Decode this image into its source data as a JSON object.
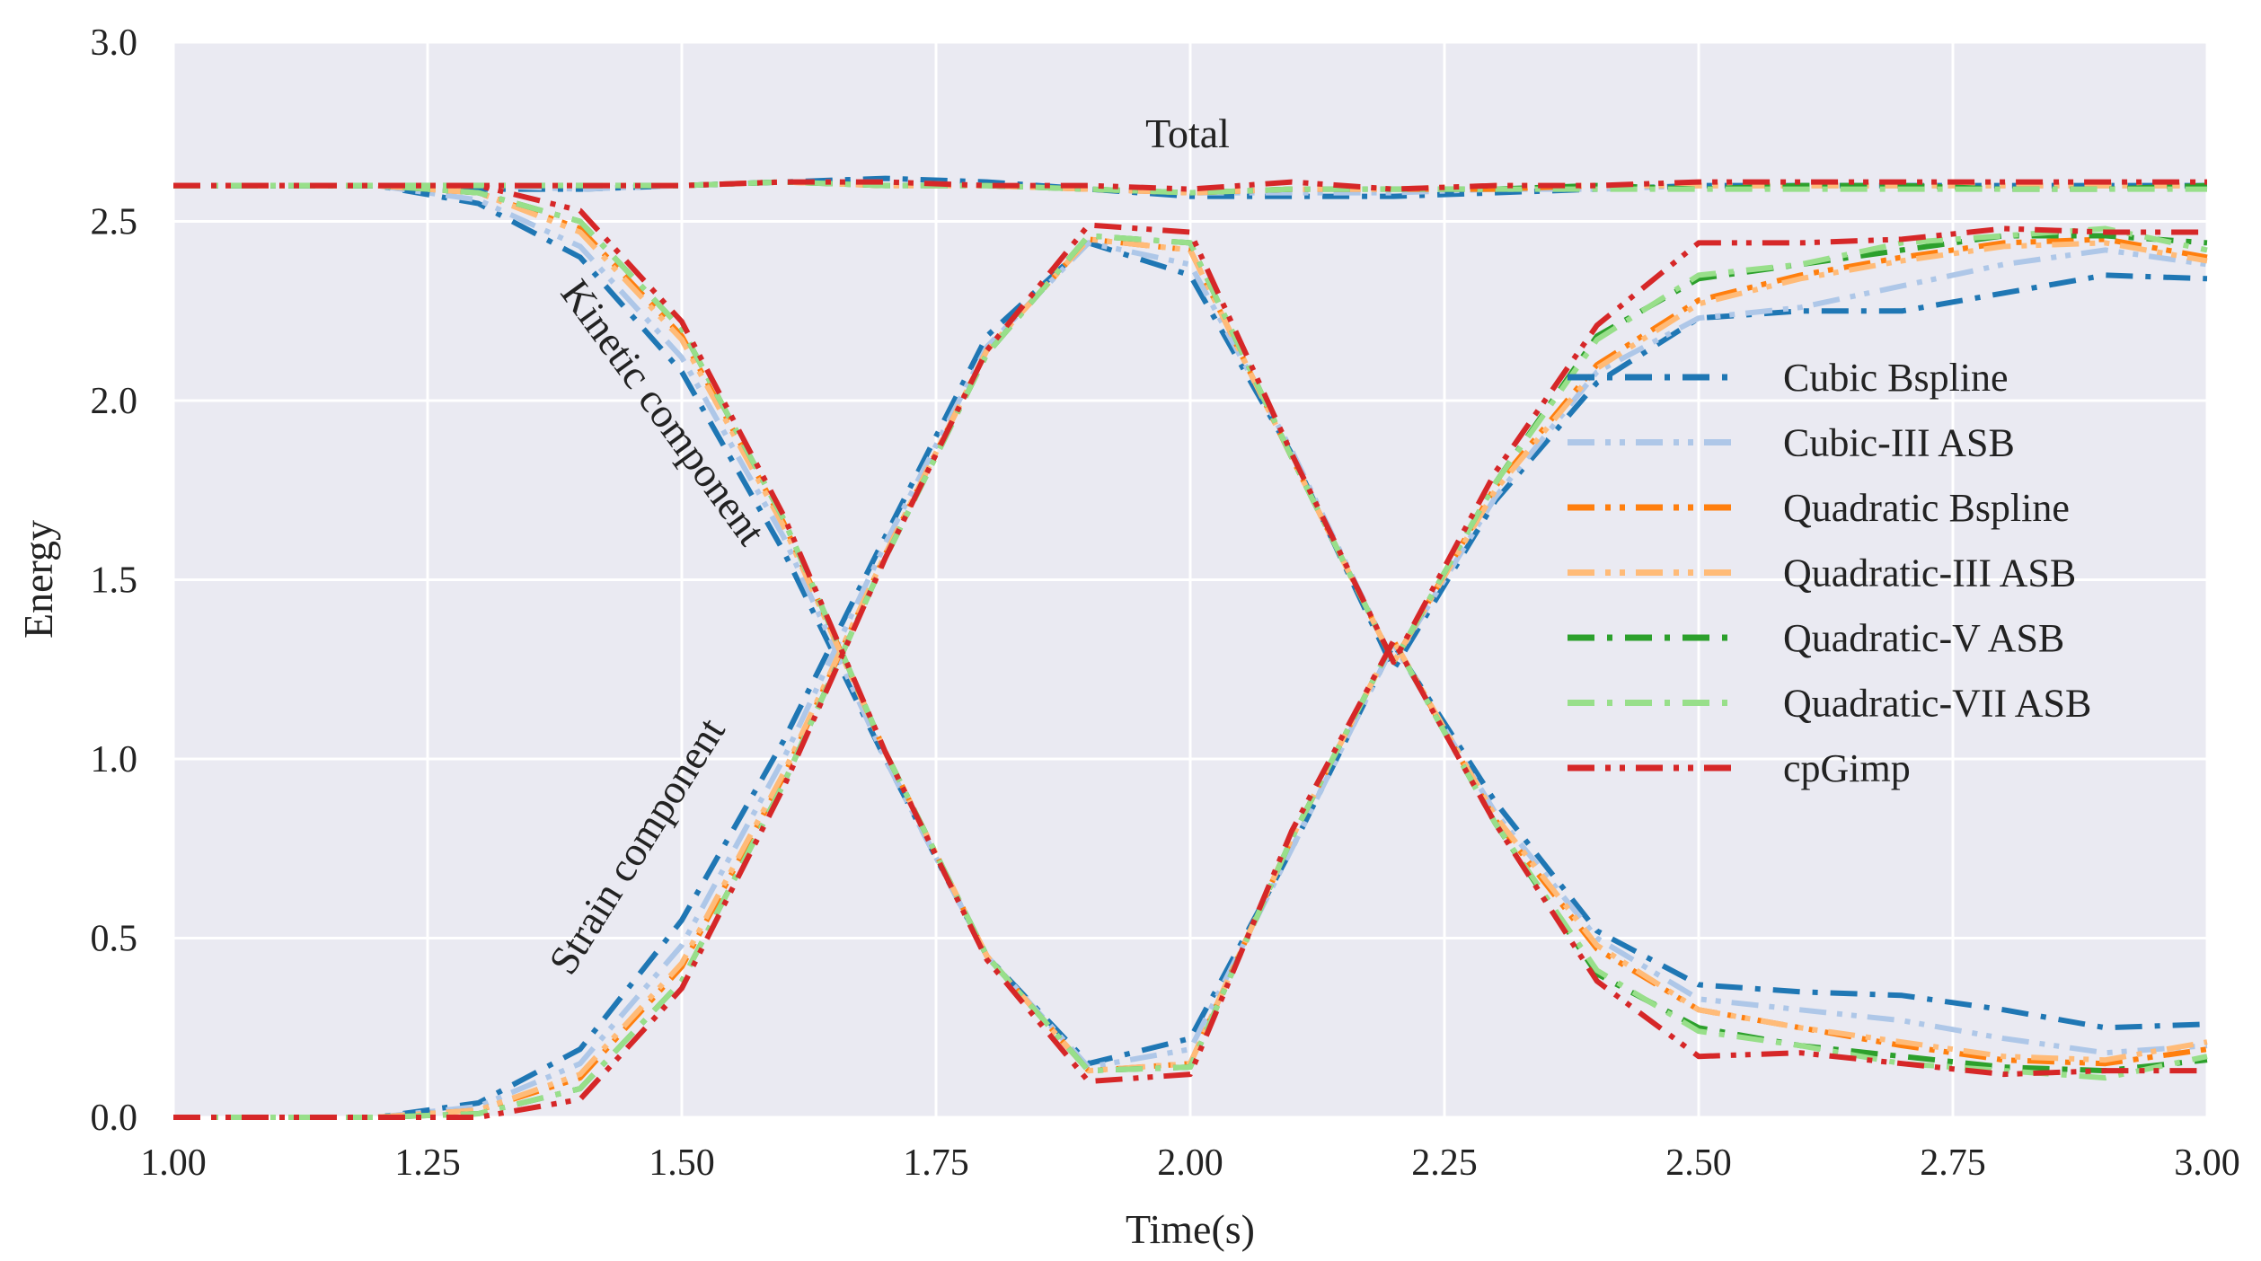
{
  "chart_data": {
    "type": "line",
    "title": "",
    "xlabel": "Time(s)",
    "ylabel": "Energy",
    "xlim": [
      1.0,
      3.0
    ],
    "ylim": [
      0.0,
      3.0
    ],
    "grid": true,
    "legend_position": "right",
    "xticks": [
      "1.00",
      "1.25",
      "1.50",
      "1.75",
      "2.00",
      "2.25",
      "2.50",
      "2.75",
      "3.00"
    ],
    "yticks": [
      "0.0",
      "0.5",
      "1.0",
      "1.5",
      "2.0",
      "2.5",
      "3.0"
    ],
    "annotations": {
      "total": "Total",
      "kinetic": "Kinetic component",
      "strain": "Strain component"
    },
    "x": [
      1.0,
      1.1,
      1.2,
      1.3,
      1.4,
      1.5,
      1.6,
      1.7,
      1.8,
      1.9,
      2.0,
      2.1,
      2.2,
      2.3,
      2.4,
      2.5,
      2.6,
      2.7,
      2.8,
      2.9,
      3.0
    ],
    "series": [
      {
        "name": "Cubic Bspline",
        "color": "#1f77b4",
        "dash": "dashdot",
        "total": [
          2.6,
          2.6,
          2.6,
          2.59,
          2.59,
          2.6,
          2.61,
          2.62,
          2.61,
          2.59,
          2.57,
          2.57,
          2.57,
          2.58,
          2.59,
          2.6,
          2.6,
          2.6,
          2.6,
          2.6,
          2.6
        ],
        "kinetic": [
          2.6,
          2.6,
          2.6,
          2.55,
          2.4,
          2.08,
          1.58,
          1.0,
          0.45,
          0.15,
          0.22,
          0.75,
          1.32,
          0.88,
          0.52,
          0.37,
          0.35,
          0.34,
          0.3,
          0.25,
          0.26
        ],
        "strain": [
          0.0,
          0.0,
          0.0,
          0.04,
          0.19,
          0.55,
          1.05,
          1.62,
          2.18,
          2.44,
          2.35,
          1.85,
          1.25,
          1.72,
          2.05,
          2.23,
          2.25,
          2.25,
          2.3,
          2.35,
          2.34
        ]
      },
      {
        "name": "Cubic-III ASB",
        "color": "#aec7e8",
        "dash": "dashdotdot",
        "total": [
          2.6,
          2.6,
          2.6,
          2.6,
          2.59,
          2.6,
          2.61,
          2.61,
          2.6,
          2.59,
          2.58,
          2.58,
          2.58,
          2.59,
          2.59,
          2.6,
          2.6,
          2.6,
          2.6,
          2.6,
          2.6
        ],
        "kinetic": [
          2.6,
          2.6,
          2.6,
          2.56,
          2.43,
          2.12,
          1.62,
          1.0,
          0.45,
          0.14,
          0.19,
          0.75,
          1.32,
          0.85,
          0.5,
          0.33,
          0.3,
          0.27,
          0.22,
          0.18,
          0.2
        ],
        "strain": [
          0.0,
          0.0,
          0.0,
          0.03,
          0.15,
          0.48,
          1.0,
          1.6,
          2.15,
          2.44,
          2.38,
          1.86,
          1.27,
          1.73,
          2.08,
          2.23,
          2.26,
          2.32,
          2.38,
          2.42,
          2.38
        ]
      },
      {
        "name": "Quadratic Bspline",
        "color": "#ff7f0e",
        "dash": "dashdotdot",
        "total": [
          2.6,
          2.6,
          2.6,
          2.6,
          2.6,
          2.6,
          2.61,
          2.6,
          2.6,
          2.59,
          2.58,
          2.59,
          2.59,
          2.59,
          2.6,
          2.6,
          2.6,
          2.6,
          2.6,
          2.6,
          2.6
        ],
        "kinetic": [
          2.6,
          2.6,
          2.6,
          2.58,
          2.48,
          2.18,
          1.66,
          1.02,
          0.45,
          0.13,
          0.15,
          0.78,
          1.33,
          0.83,
          0.47,
          0.3,
          0.25,
          0.2,
          0.16,
          0.15,
          0.19
        ],
        "strain": [
          0.0,
          0.0,
          0.0,
          0.02,
          0.11,
          0.42,
          0.95,
          1.57,
          2.14,
          2.45,
          2.42,
          1.84,
          1.27,
          1.76,
          2.1,
          2.28,
          2.35,
          2.4,
          2.44,
          2.45,
          2.4
        ]
      },
      {
        "name": "Quadratic-III ASB",
        "color": "#ffbb78",
        "dash": "dashdotdot",
        "total": [
          2.6,
          2.6,
          2.6,
          2.6,
          2.6,
          2.6,
          2.61,
          2.6,
          2.6,
          2.59,
          2.58,
          2.59,
          2.59,
          2.6,
          2.6,
          2.6,
          2.6,
          2.6,
          2.6,
          2.6,
          2.6
        ],
        "kinetic": [
          2.6,
          2.6,
          2.6,
          2.58,
          2.47,
          2.17,
          1.65,
          1.02,
          0.45,
          0.13,
          0.15,
          0.78,
          1.33,
          0.84,
          0.48,
          0.3,
          0.25,
          0.21,
          0.17,
          0.16,
          0.21
        ],
        "strain": [
          0.0,
          0.0,
          0.0,
          0.02,
          0.12,
          0.43,
          0.96,
          1.57,
          2.14,
          2.45,
          2.42,
          1.84,
          1.27,
          1.75,
          2.09,
          2.27,
          2.34,
          2.39,
          2.43,
          2.44,
          2.39
        ]
      },
      {
        "name": "Quadratic-V ASB",
        "color": "#2ca02c",
        "dash": "dashdot",
        "total": [
          2.6,
          2.6,
          2.6,
          2.6,
          2.6,
          2.6,
          2.61,
          2.6,
          2.6,
          2.59,
          2.58,
          2.59,
          2.59,
          2.59,
          2.6,
          2.59,
          2.6,
          2.6,
          2.59,
          2.59,
          2.6
        ],
        "kinetic": [
          2.6,
          2.6,
          2.6,
          2.58,
          2.5,
          2.2,
          1.67,
          1.02,
          0.45,
          0.13,
          0.14,
          0.78,
          1.33,
          0.82,
          0.4,
          0.25,
          0.2,
          0.17,
          0.14,
          0.13,
          0.16
        ],
        "strain": [
          0.0,
          0.0,
          0.0,
          0.01,
          0.08,
          0.38,
          0.93,
          1.56,
          2.13,
          2.46,
          2.44,
          1.84,
          1.27,
          1.77,
          2.18,
          2.34,
          2.38,
          2.42,
          2.46,
          2.46,
          2.44
        ]
      },
      {
        "name": "Quadratic-VII ASB",
        "color": "#98df8a",
        "dash": "dashdot",
        "total": [
          2.6,
          2.6,
          2.6,
          2.6,
          2.6,
          2.6,
          2.61,
          2.6,
          2.6,
          2.59,
          2.58,
          2.59,
          2.59,
          2.59,
          2.59,
          2.59,
          2.59,
          2.59,
          2.59,
          2.59,
          2.59
        ],
        "kinetic": [
          2.6,
          2.6,
          2.6,
          2.58,
          2.5,
          2.2,
          1.67,
          1.02,
          0.45,
          0.13,
          0.14,
          0.78,
          1.33,
          0.82,
          0.41,
          0.24,
          0.2,
          0.15,
          0.13,
          0.11,
          0.17
        ],
        "strain": [
          0.0,
          0.0,
          0.0,
          0.01,
          0.08,
          0.38,
          0.93,
          1.56,
          2.13,
          2.46,
          2.44,
          1.84,
          1.27,
          1.77,
          2.17,
          2.35,
          2.38,
          2.44,
          2.46,
          2.48,
          2.42
        ]
      },
      {
        "name": "cpGimp",
        "color": "#d62728",
        "dash": "dashdotdot",
        "total": [
          2.6,
          2.6,
          2.6,
          2.6,
          2.6,
          2.6,
          2.61,
          2.61,
          2.6,
          2.6,
          2.59,
          2.61,
          2.59,
          2.6,
          2.6,
          2.61,
          2.61,
          2.61,
          2.61,
          2.61,
          2.61
        ],
        "kinetic": [
          2.6,
          2.6,
          2.6,
          2.6,
          2.53,
          2.22,
          1.68,
          1.02,
          0.44,
          0.1,
          0.12,
          0.8,
          1.33,
          0.82,
          0.38,
          0.17,
          0.18,
          0.15,
          0.12,
          0.13,
          0.13
        ],
        "strain": [
          0.0,
          0.0,
          0.0,
          0.0,
          0.05,
          0.36,
          0.92,
          1.56,
          2.14,
          2.49,
          2.47,
          1.85,
          1.27,
          1.8,
          2.21,
          2.44,
          2.44,
          2.45,
          2.48,
          2.47,
          2.47
        ]
      }
    ]
  }
}
